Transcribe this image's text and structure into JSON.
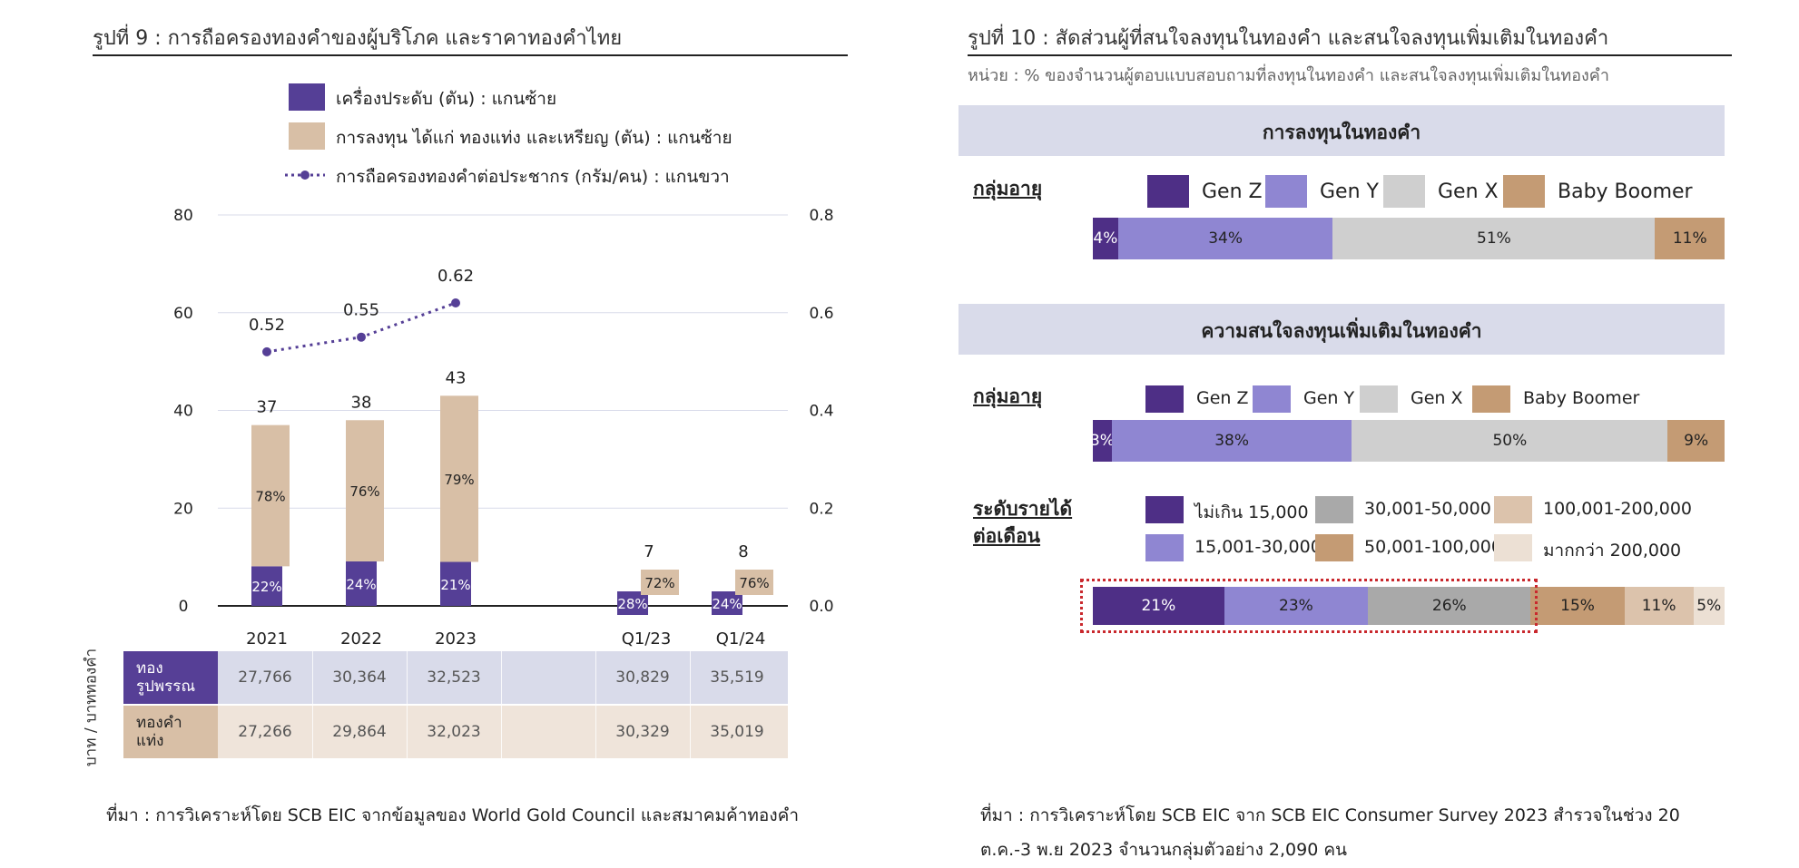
{
  "left": {
    "title": "รูปที่ 9 : การถือครองทองคำของผู้บริโภค และราคาทองคำไทย",
    "legend": [
      {
        "label": "เครื่องประดับ (ตัน) : แกนซ้าย",
        "color": "#553f96",
        "kind": "box"
      },
      {
        "label": "การลงทุน ได้แก่ ทองแท่ง และเหรียญ (ตัน) : แกนซ้าย",
        "color": "#d8bfa6",
        "kind": "box"
      },
      {
        "label": "การถือครองทองคำต่อประชากร (กรัม/คน) : แกนขวา",
        "color": "#553f96",
        "kind": "dotline"
      }
    ],
    "table_axis_label": "บาท / บาททองคำ",
    "table": {
      "rows": [
        {
          "name": "ทอง\nรูปพรรณ",
          "values": [
            "27,766",
            "30,364",
            "32,523",
            "",
            "30,829",
            "35,519"
          ]
        },
        {
          "name": "ทองคำ\nแท่ง",
          "values": [
            "27,266",
            "29,864",
            "32,023",
            "",
            "30,329",
            "35,019"
          ]
        }
      ]
    },
    "source": "ที่มา : การวิเคราะห์โดย SCB EIC จากข้อมูลของ World Gold Council และสมาคมค้าทองคำ"
  },
  "chart_data": [
    {
      "type": "bar",
      "stacked": true,
      "categories": [
        "2021",
        "2022",
        "2023",
        "Q1/23",
        "Q1/24"
      ],
      "series": [
        {
          "name": "เครื่องประดับ (ตัน) : แกนซ้าย",
          "values": [
            8.1,
            9.1,
            9.0,
            2.0,
            1.9
          ],
          "labels": [
            "22%",
            "24%",
            "21%",
            "28%",
            "24%"
          ],
          "color": "#553f96"
        },
        {
          "name": "การลงทุน ได้แก่ ทองแท่ง และเหรียญ (ตัน) : แกนซ้าย",
          "values": [
            28.9,
            28.9,
            34.0,
            5.0,
            6.1
          ],
          "labels": [
            "78%",
            "76%",
            "79%",
            "72%",
            "76%"
          ],
          "color": "#d8bfa6"
        }
      ],
      "totals": [
        37,
        38,
        43,
        7,
        8
      ],
      "line": {
        "name": "การถือครองทองคำต่อประชากร (กรัม/คน) : แกนขวา",
        "categories": [
          "2021",
          "2022",
          "2023"
        ],
        "values": [
          0.52,
          0.55,
          0.62
        ],
        "color": "#553f96"
      },
      "ylim": [
        0,
        80
      ],
      "yticks": [
        "0",
        "20",
        "40",
        "60",
        "80"
      ],
      "y2lim": [
        0,
        0.8
      ],
      "y2ticks": [
        "0.0",
        "0.2",
        "0.4",
        "0.6",
        "0.8"
      ],
      "grid": true
    },
    {
      "type": "bar",
      "stacked": true,
      "orientation": "horizontal",
      "title": "การลงทุนในทองคำ",
      "group_label": "กลุ่มอายุ",
      "series": [
        {
          "name": "Gen Z",
          "value": 4,
          "label": "4%",
          "color": "#4e2f86"
        },
        {
          "name": "Gen Y",
          "value": 34,
          "label": "34%",
          "color": "#8f86d2"
        },
        {
          "name": "Gen X",
          "value": 51,
          "label": "51%",
          "color": "#cfcfcf"
        },
        {
          "name": "Baby Boomer",
          "value": 11,
          "label": "11%",
          "color": "#c49b74"
        }
      ]
    },
    {
      "type": "bar",
      "stacked": true,
      "orientation": "horizontal",
      "title": "ความสนใจลงทุนเพิ่มเติมในทองคำ",
      "group_label": "กลุ่มอายุ",
      "series": [
        {
          "name": "Gen Z",
          "value": 3,
          "label": "3%",
          "color": "#4e2f86"
        },
        {
          "name": "Gen Y",
          "value": 38,
          "label": "38%",
          "color": "#8f86d2"
        },
        {
          "name": "Gen X",
          "value": 50,
          "label": "50%",
          "color": "#cfcfcf"
        },
        {
          "name": "Baby Boomer",
          "value": 9,
          "label": "9%",
          "color": "#c49b74"
        }
      ]
    },
    {
      "type": "bar",
      "stacked": true,
      "orientation": "horizontal",
      "group_label": "ระดับรายได้\nต่อเดือน",
      "series": [
        {
          "name": "ไม่เกิน 15,000",
          "value": 21,
          "label": "21%",
          "color": "#4e2f86"
        },
        {
          "name": "15,001-30,000",
          "value": 23,
          "label": "23%",
          "color": "#8f86d2"
        },
        {
          "name": "30,001-50,000",
          "value": 26,
          "label": "26%",
          "color": "#a9a9a9"
        },
        {
          "name": "50,001-100,000",
          "value": 15,
          "label": "15%",
          "color": "#c49b74"
        },
        {
          "name": "100,001-200,000",
          "value": 11,
          "label": "11%",
          "color": "#dcc3ac"
        },
        {
          "name": "มากกว่า 200,000",
          "value": 5,
          "label": "5%",
          "color": "#ece0d4"
        }
      ],
      "highlight_series_count": 3
    }
  ],
  "right": {
    "title": "รูปที่ 10 : สัดส่วนผู้ที่สนใจลงทุนในทองคำ และสนใจลงทุนเพิ่มเติมในทองคำ",
    "unit": "หน่วย : % ของจำนวนผู้ตอบแบบสอบถามที่ลงทุนในทองคำ และสนใจลงทุนเพิ่มเติมในทองคำ",
    "source": "ที่มา : การวิเคราะห์โดย SCB EIC จาก SCB EIC Consumer Survey 2023 สำรวจในช่วง 20 ต.ค.-3 พ.ย 2023 จำนวนกลุ่มตัวอย่าง 2,090 คน"
  }
}
